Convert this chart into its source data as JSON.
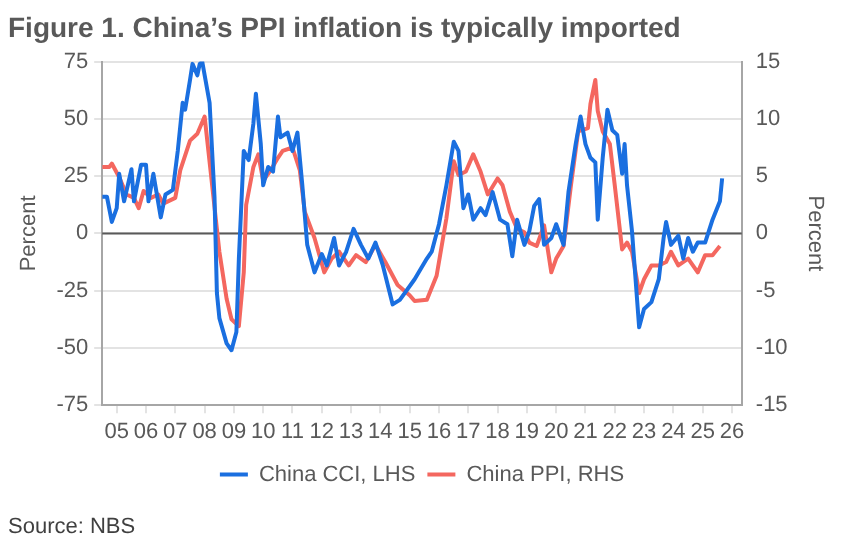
{
  "chart_data": {
    "type": "line",
    "title": "Figure 1. China’s PPI inflation is typically imported",
    "ylabel": "Percent",
    "y2label": "Percent",
    "annotations": [
      "Source: NBS"
    ],
    "xlim": [
      "2005-01",
      "2026-11"
    ],
    "xticks": [
      {
        "value": "2005-07",
        "label": "05"
      },
      {
        "value": "2006-07",
        "label": "06"
      },
      {
        "value": "2007-07",
        "label": "07"
      },
      {
        "value": "2008-07",
        "label": "08"
      },
      {
        "value": "2009-07",
        "label": "09"
      },
      {
        "value": "2010-07",
        "label": "10"
      },
      {
        "value": "2011-07",
        "label": "11"
      },
      {
        "value": "2012-07",
        "label": "12"
      },
      {
        "value": "2013-07",
        "label": "13"
      },
      {
        "value": "2014-07",
        "label": "14"
      },
      {
        "value": "2015-07",
        "label": "15"
      },
      {
        "value": "2016-07",
        "label": "16"
      },
      {
        "value": "2017-07",
        "label": "17"
      },
      {
        "value": "2018-07",
        "label": "18"
      },
      {
        "value": "2019-07",
        "label": "19"
      },
      {
        "value": "2020-07",
        "label": "20"
      },
      {
        "value": "2021-07",
        "label": "21"
      },
      {
        "value": "2022-07",
        "label": "22"
      },
      {
        "value": "2023-07",
        "label": "23"
      },
      {
        "value": "2024-07",
        "label": "24"
      },
      {
        "value": "2025-07",
        "label": "25"
      },
      {
        "value": "2026-07",
        "label": "26"
      }
    ],
    "ylim": [
      -75,
      75
    ],
    "yticks": [
      -75,
      -50,
      -25,
      0,
      25,
      50,
      75
    ],
    "y2lim": [
      -15,
      15
    ],
    "y2ticks": [
      -15,
      -10,
      -5,
      0,
      5,
      10,
      15
    ],
    "grid": "y",
    "legend": "bottom",
    "marker": "none",
    "line_style": "solid",
    "ref_lines": [
      {
        "axis": "y",
        "value": 0,
        "color": "#595959"
      }
    ],
    "series": [
      {
        "name": "China CCI, LHS",
        "color": "#1a6fe0",
        "x": [
          "2005-01",
          "2005-03",
          "2005-05",
          "2005-07",
          "2005-08",
          "2005-10",
          "2006-01",
          "2006-02",
          "2006-05",
          "2006-07",
          "2006-08",
          "2006-10",
          "2007-01",
          "2007-03",
          "2007-06",
          "2007-08",
          "2007-10",
          "2007-11",
          "2008-01",
          "2008-02",
          "2008-04",
          "2008-05",
          "2008-06",
          "2008-09",
          "2008-11",
          "2008-12",
          "2009-01",
          "2009-04",
          "2009-06",
          "2009-08",
          "2009-09",
          "2009-11",
          "2010-01",
          "2010-03",
          "2010-04",
          "2010-06",
          "2010-07",
          "2010-09",
          "2010-11",
          "2011-01",
          "2011-02",
          "2011-05",
          "2011-07",
          "2011-09",
          "2011-11",
          "2012-01",
          "2012-04",
          "2012-07",
          "2012-09",
          "2012-12",
          "2013-02",
          "2013-05",
          "2013-08",
          "2013-11",
          "2014-02",
          "2014-05",
          "2014-08",
          "2014-12",
          "2015-03",
          "2015-09",
          "2016-02",
          "2016-04",
          "2016-07",
          "2016-10",
          "2017-01",
          "2017-03",
          "2017-05",
          "2017-07",
          "2017-09",
          "2017-12",
          "2018-02",
          "2018-05",
          "2018-08",
          "2018-11",
          "2019-01",
          "2019-03",
          "2019-06",
          "2019-08",
          "2019-10",
          "2019-12",
          "2020-02",
          "2020-05",
          "2020-07",
          "2020-10",
          "2020-12",
          "2021-03",
          "2021-05",
          "2021-07",
          "2021-09",
          "2021-11",
          "2021-12",
          "2022-02",
          "2022-04",
          "2022-06",
          "2022-08",
          "2022-10",
          "2022-11",
          "2022-12",
          "2023-02",
          "2023-05",
          "2023-07",
          "2023-10",
          "2024-01",
          "2024-03",
          "2024-04",
          "2024-06",
          "2024-09",
          "2024-11",
          "2025-01",
          "2025-03",
          "2025-05",
          "2025-08",
          "2025-11",
          "2026-02",
          "2026-03"
        ],
        "values": [
          16,
          16,
          5,
          11,
          26,
          14,
          28,
          14,
          30,
          30,
          14,
          26,
          7,
          17,
          19,
          36,
          57,
          54,
          67,
          74,
          69,
          74,
          75,
          57,
          16,
          -26,
          -37,
          -48,
          -51,
          -43,
          -11,
          36,
          32,
          48,
          61,
          39,
          21,
          29,
          27,
          51,
          42,
          44,
          36,
          44,
          21,
          -5,
          -17,
          -9,
          -14,
          -2,
          -14,
          -8,
          2,
          -5,
          -11,
          -4,
          -14,
          -31,
          -29,
          -20,
          -11,
          -8,
          4,
          21,
          40,
          36,
          11,
          17,
          6,
          11,
          8,
          18,
          6,
          4,
          -10,
          6,
          -5,
          1,
          12,
          15,
          -5,
          -2,
          4,
          -5,
          18,
          39,
          51,
          39,
          33,
          31,
          6,
          33,
          54,
          45,
          43,
          26,
          39,
          21,
          1,
          -41,
          -33,
          -30,
          -20,
          -2,
          5,
          -5,
          -1,
          -11,
          -2,
          -8,
          -4,
          -4,
          6,
          14,
          24
        ]
      },
      {
        "name": "China PPI, RHS",
        "color": "#f4675f",
        "axis": "y2",
        "x": [
          "2005-01",
          "2005-04",
          "2005-05",
          "2005-08",
          "2005-11",
          "2006-02",
          "2006-04",
          "2006-06",
          "2006-09",
          "2006-12",
          "2007-02",
          "2007-07",
          "2007-09",
          "2008-01",
          "2008-04",
          "2008-07",
          "2008-10",
          "2009-01",
          "2009-04",
          "2009-06",
          "2009-09",
          "2009-11",
          "2009-12",
          "2010-03",
          "2010-05",
          "2010-07",
          "2010-10",
          "2011-01",
          "2011-03",
          "2011-07",
          "2011-10",
          "2011-12",
          "2012-04",
          "2012-08",
          "2012-11",
          "2013-02",
          "2013-06",
          "2013-09",
          "2014-01",
          "2014-05",
          "2014-09",
          "2015-02",
          "2015-07",
          "2015-09",
          "2016-02",
          "2016-06",
          "2016-10",
          "2017-01",
          "2017-03",
          "2017-06",
          "2017-09",
          "2017-12",
          "2018-03",
          "2018-07",
          "2018-09",
          "2018-12",
          "2019-03",
          "2019-06",
          "2019-08",
          "2019-11",
          "2020-02",
          "2020-05",
          "2020-07",
          "2020-10",
          "2021-01",
          "2021-04",
          "2021-08",
          "2021-09",
          "2021-11",
          "2021-12",
          "2022-02",
          "2022-05",
          "2022-07",
          "2022-10",
          "2022-12",
          "2023-02",
          "2023-05",
          "2023-07",
          "2023-10",
          "2024-01",
          "2024-04",
          "2024-06",
          "2024-09",
          "2025-01",
          "2025-05",
          "2025-08",
          "2025-11",
          "2026-02"
        ],
        "values": [
          5.8,
          5.8,
          6.1,
          4.9,
          3.4,
          3.1,
          2.2,
          3.7,
          3.1,
          3.4,
          2.6,
          3.1,
          5.5,
          8.1,
          8.7,
          10.2,
          4.3,
          -1.6,
          -5.7,
          -7.5,
          -8.1,
          -3.4,
          2.5,
          5.8,
          6.9,
          4.6,
          5.5,
          6.6,
          7.2,
          7.5,
          5.5,
          1.9,
          -0.4,
          -3.4,
          -2.2,
          -1.6,
          -2.8,
          -1.9,
          -2.5,
          -1.0,
          -2.5,
          -4.5,
          -5.4,
          -5.9,
          -5.8,
          -3.7,
          1.3,
          6.3,
          5.1,
          5.4,
          6.9,
          5.4,
          3.4,
          4.8,
          4.2,
          1.9,
          0.4,
          0.1,
          -0.8,
          -1.1,
          0.7,
          -3.4,
          -2.2,
          -1.1,
          4.2,
          8.9,
          9.2,
          11.3,
          13.4,
          10.7,
          8.9,
          7.8,
          4.2,
          -1.4,
          -0.8,
          -1.6,
          -5.2,
          -4.0,
          -2.8,
          -2.8,
          -2.5,
          -1.6,
          -2.8,
          -2.2,
          -3.4,
          -1.9,
          -1.9,
          -1.1
        ]
      }
    ]
  }
}
